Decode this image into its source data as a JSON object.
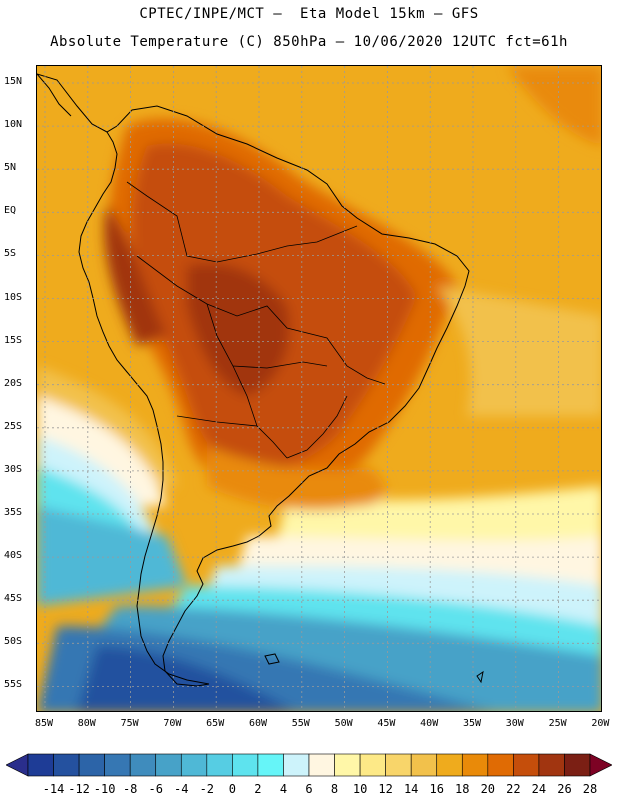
{
  "header": {
    "line1": "CPTEC/INPE/MCT –  Eta Model 15km – GFS",
    "line2": "Absolute Temperature (C) 850hPa – 10/06/2020 12UTC fct=61h"
  },
  "map": {
    "lat_labels": [
      "15N",
      "10N",
      "5N",
      "EQ",
      "5S",
      "10S",
      "15S",
      "20S",
      "25S",
      "30S",
      "35S",
      "40S",
      "45S",
      "50S",
      "55S"
    ],
    "lon_labels": [
      "85W",
      "80W",
      "75W",
      "70W",
      "65W",
      "60W",
      "55W",
      "50W",
      "45W",
      "40W",
      "35W",
      "30W",
      "25W",
      "20W"
    ],
    "grid": true,
    "grid_color": "#9a9a9a"
  },
  "colorbar": {
    "labels": [
      "-14",
      "-12",
      "-10",
      "-8",
      "-6",
      "-4",
      "-2",
      "0",
      "2",
      "4",
      "6",
      "8",
      "10",
      "12",
      "14",
      "16",
      "18",
      "20",
      "22",
      "24",
      "26",
      "28"
    ],
    "colors": [
      "#1e3c96",
      "#24519f",
      "#2c64a8",
      "#3677b3",
      "#3f8cbd",
      "#47a2c8",
      "#4fb8d6",
      "#56cde3",
      "#5ee3ee",
      "#66f5f8",
      "#cdf3fb",
      "#fff6e1",
      "#fff7a8",
      "#fde987",
      "#f8d56a",
      "#f2c14b",
      "#efab1d",
      "#e98a09",
      "#e06b04",
      "#c54e0b",
      "#a13510",
      "#7b1f14"
    ],
    "under_color": "#2a2e8c",
    "over_color": "#7d0224"
  }
}
